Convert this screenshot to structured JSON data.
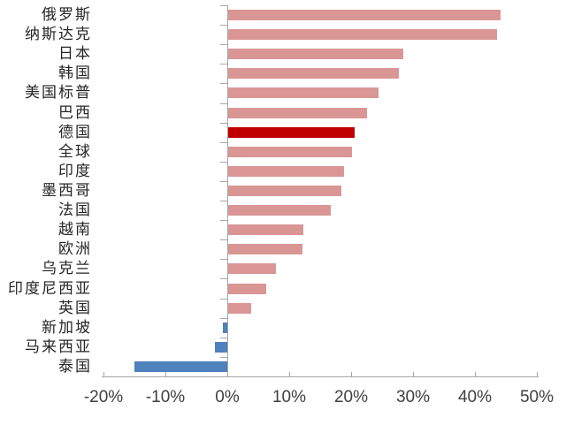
{
  "chart_data": {
    "type": "bar",
    "orientation": "horizontal",
    "title": "",
    "xlabel": "",
    "ylabel": "",
    "unit": "%",
    "categories": [
      "俄罗斯",
      "纳斯达克",
      "日本",
      "韩国",
      "美国标普",
      "巴西",
      "德国",
      "全球",
      "印度",
      "墨西哥",
      "法国",
      "越南",
      "欧洲",
      "乌克兰",
      "印度尼西亚",
      "英国",
      "新加坡",
      "马来西亚",
      "泰国"
    ],
    "values": [
      44.1,
      43.5,
      28.4,
      27.7,
      24.4,
      22.5,
      20.5,
      20.1,
      18.8,
      18.4,
      16.7,
      12.3,
      12.2,
      7.8,
      6.3,
      3.8,
      -0.7,
      -2.0,
      -15.0
    ],
    "styles": [
      "positive",
      "positive",
      "positive",
      "positive",
      "positive",
      "positive",
      "highlight",
      "positive",
      "positive",
      "positive",
      "positive",
      "positive",
      "positive",
      "positive",
      "positive",
      "positive",
      "negative",
      "negative",
      "negative"
    ],
    "highlight_category": "德国",
    "palette": {
      "positive": "#D99694",
      "highlight": "#C00000",
      "negative": "#4F81BD"
    },
    "axis_color": "#A6A6A6",
    "tick_color": "#A6A6A6",
    "label_color": "#262626",
    "x_tick_label_color": "#404040",
    "xlim": [
      -20,
      50
    ],
    "x_tick_values": [
      -20,
      -10,
      0,
      10,
      20,
      30,
      40,
      50
    ],
    "x_tick_labels": [
      "-20%",
      "-10%",
      "0%",
      "10%",
      "20%",
      "30%",
      "40%",
      "50%"
    ],
    "grid": false,
    "legend": false,
    "background": "#FFFFFF"
  }
}
